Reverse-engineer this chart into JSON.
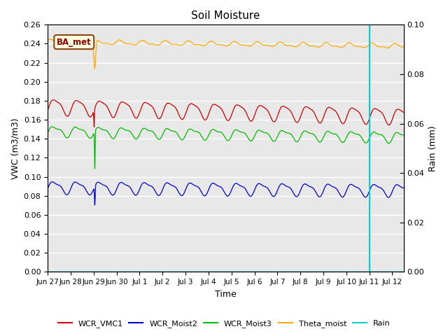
{
  "title": "Soil Moisture",
  "xlabel": "Time",
  "ylabel_left": "VWC (m3/m3)",
  "ylabel_right": "Rain (mm)",
  "ylim_left": [
    0.0,
    0.26
  ],
  "ylim_right": [
    0.0,
    0.1
  ],
  "yticks_left": [
    0.0,
    0.02,
    0.04,
    0.06,
    0.08,
    0.1,
    0.12,
    0.14,
    0.16,
    0.18,
    0.2,
    0.22,
    0.24,
    0.26
  ],
  "yticks_right": [
    0.0,
    0.02,
    0.04,
    0.06,
    0.08,
    0.1
  ],
  "xlim": [
    0,
    15.5
  ],
  "xtick_labels": [
    "Jun 27",
    "Jun 28",
    "Jun 29",
    "Jun 30",
    "Jul 1",
    "Jul 2",
    "Jul 3",
    "Jul 4",
    "Jul 5",
    "Jul 6",
    "Jul 7",
    "Jul 8",
    "Jul 9",
    "Jul 10",
    "Jul 11",
    "Jul 12"
  ],
  "xtick_positions": [
    0,
    1,
    2,
    3,
    4,
    5,
    6,
    7,
    8,
    9,
    10,
    11,
    12,
    13,
    14,
    15
  ],
  "annotation_text": "BA_met",
  "vertical_line_x": 14.0,
  "colors": {
    "WCR_VMC1": "#cc0000",
    "WCR_Moist2": "#0000cc",
    "WCR_Moist3": "#00bb00",
    "Theta_moist": "#ffaa00",
    "Rain": "#00cccc",
    "background": "#e8e8e8"
  },
  "legend_labels": [
    "WCR_VMC1",
    "WCR_Moist2",
    "WCR_Moist3",
    "Theta_moist",
    "Rain"
  ],
  "legend_colors": [
    "#cc0000",
    "#0000cc",
    "#00bb00",
    "#ffaa00",
    "#00cccc"
  ],
  "wcr_vmc1_base": 0.174,
  "wcr_vmc1_amp": 0.008,
  "wcr_vmc1_trend": -0.00065,
  "wcr_moist2_base": 0.089,
  "wcr_moist2_amp": 0.006,
  "wcr_moist2_trend": -0.0002,
  "wcr_moist3_base": 0.148,
  "wcr_moist3_amp": 0.005,
  "wcr_moist3_trend": -0.0004,
  "theta_base": 0.242,
  "theta_amp": 0.002,
  "theta_trend": -0.0003
}
